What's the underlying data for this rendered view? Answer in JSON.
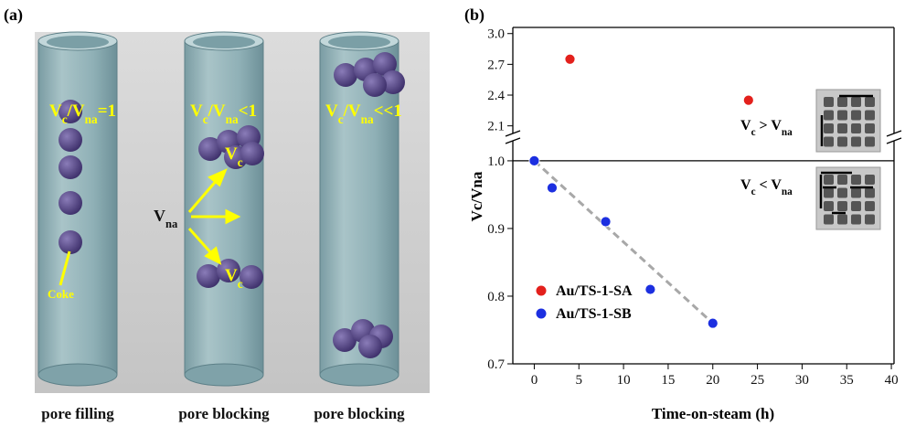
{
  "panel_a": {
    "label": "(a)",
    "tube_labels": [
      [
        "V",
        "c",
        "/V",
        "na",
        "=1"
      ],
      [
        "V",
        "c",
        "/V",
        "na",
        "<1"
      ],
      [
        "V",
        "c",
        "/V",
        "na",
        "<<1"
      ]
    ],
    "vc_labels": [
      [
        "V",
        "c"
      ],
      [
        "V",
        "c"
      ]
    ],
    "vna_label": [
      "V",
      "na"
    ],
    "coke_label": "Coke",
    "captions": [
      "pore filling",
      "pore blocking",
      "pore blocking"
    ]
  },
  "chart_data": {
    "type": "scatter",
    "panel_label": "(b)",
    "xlabel": "Time-on-steam (h)",
    "ylabel": "Vc/Vna",
    "xlim": [
      -2.4,
      40.3
    ],
    "xticks": [
      0,
      5,
      10,
      15,
      20,
      25,
      30,
      35,
      40
    ],
    "y_segments": [
      {
        "ylim": [
          0.7,
          1.035
        ],
        "yticks": [
          0.7,
          0.8,
          0.9,
          {
            "value": 1,
            "label": "1.0"
          }
        ]
      },
      {
        "ylim": [
          1.99,
          3.06
        ],
        "yticks": [
          2.1,
          2.4,
          2.7,
          {
            "value": 3,
            "label": "3.0"
          }
        ]
      }
    ],
    "reference_line": 1,
    "series": [
      {
        "name": "Au/TS-1-SA",
        "color": "#e3201c",
        "x": [
          0,
          4,
          24
        ],
        "values": [
          1.0,
          2.75,
          2.35
        ]
      },
      {
        "name": "Au/TS-1-SB",
        "color": "#1c2fe0",
        "x": [
          0,
          2,
          8,
          13,
          20
        ],
        "values": [
          1.0,
          0.96,
          0.91,
          0.81,
          0.76
        ]
      }
    ],
    "fit": {
      "x": [
        0,
        20
      ],
      "values": [
        1.0,
        0.76
      ],
      "color": "#a8a8a8"
    },
    "annotations": [
      [
        "V",
        "c",
        " > V",
        "na"
      ],
      [
        "V",
        "c",
        " < V",
        "na"
      ]
    ],
    "legend": "lower left"
  }
}
